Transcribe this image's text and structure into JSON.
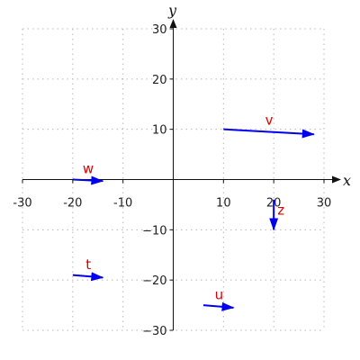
{
  "chart_data": {
    "type": "vector-field",
    "title": "",
    "xlabel": "x",
    "ylabel": "y",
    "xlim": [
      -30,
      30
    ],
    "ylim": [
      -30,
      30
    ],
    "grid": true,
    "xticks": [
      -30,
      -20,
      -10,
      10,
      20,
      30
    ],
    "yticks": [
      -30,
      -20,
      -10,
      10,
      20,
      30
    ],
    "xtick_labels": [
      "-30",
      "-20",
      "-10",
      "10",
      "20",
      "30"
    ],
    "ytick_labels": [
      "−30",
      "−20",
      "−10",
      "10",
      "20",
      "30"
    ],
    "vector_color": "#0000ee",
    "label_color": "#dd0000",
    "vectors": [
      {
        "label": "v",
        "start": [
          10,
          10
        ],
        "end": [
          28,
          9
        ]
      },
      {
        "label": "w",
        "start": [
          -20,
          0
        ],
        "end": [
          -14,
          -0.3
        ]
      },
      {
        "label": "z",
        "start": [
          20,
          -4
        ],
        "end": [
          20,
          -10
        ]
      },
      {
        "label": "t",
        "start": [
          -20,
          -19
        ],
        "end": [
          -14,
          -19.5
        ]
      },
      {
        "label": "u",
        "start": [
          6,
          -25
        ],
        "end": [
          12,
          -25.5
        ]
      }
    ]
  }
}
